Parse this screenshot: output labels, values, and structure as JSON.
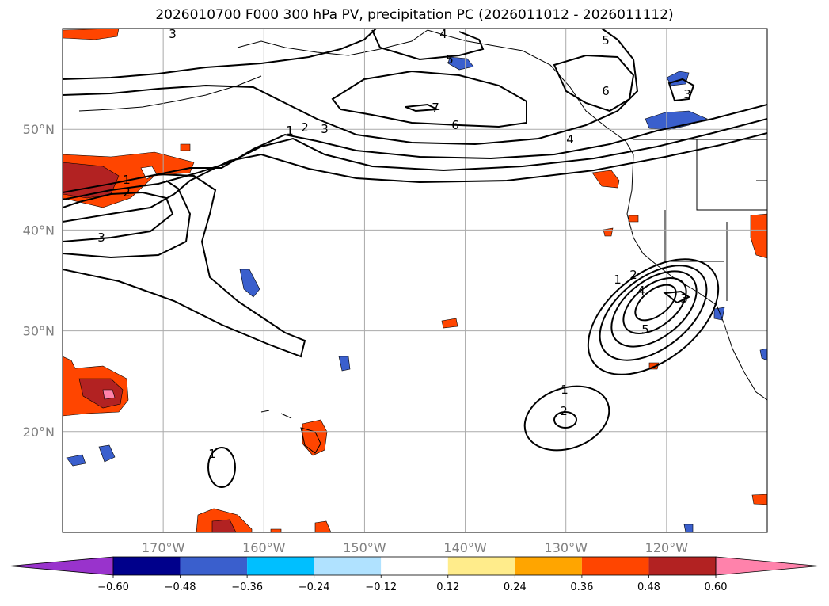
{
  "title": "2026010700 F000 300 hPa PV, precipitation PC (2026011012 - 2026011112)",
  "map": {
    "lon_range": [
      -180,
      -110
    ],
    "lat_range": [
      10,
      60
    ],
    "lon_ticks": [
      -170,
      -160,
      -150,
      -140,
      -130,
      -120
    ],
    "lat_ticks": [
      20,
      30,
      40,
      50
    ],
    "lon_tick_labels": [
      "170°W",
      "160°W",
      "150°W",
      "140°W",
      "130°W",
      "120°W"
    ],
    "lat_tick_labels": [
      "20°N",
      "30°N",
      "40°N",
      "50°N"
    ],
    "grid": true
  },
  "colorbar": {
    "colors": [
      "#9933cc",
      "#00008b",
      "#3a5fcd",
      "#00bfff",
      "#b0e2ff",
      "#ffffff",
      "#ffec8b",
      "#ffa500",
      "#ff4500",
      "#b22222",
      "#ff82ab"
    ],
    "tick_labels": [
      "−0.60",
      "−0.48",
      "−0.36",
      "−0.24",
      "−0.12",
      "0.12",
      "0.24",
      "0.36",
      "0.48",
      "0.60"
    ]
  },
  "pv_labels": [
    "3",
    "4",
    "5",
    "5",
    "6",
    "7",
    "6",
    "4",
    "3",
    "1",
    "2",
    "3",
    "1",
    "2",
    "3",
    "1",
    "2",
    "4",
    "3",
    "5",
    "1",
    "2",
    "1"
  ]
}
